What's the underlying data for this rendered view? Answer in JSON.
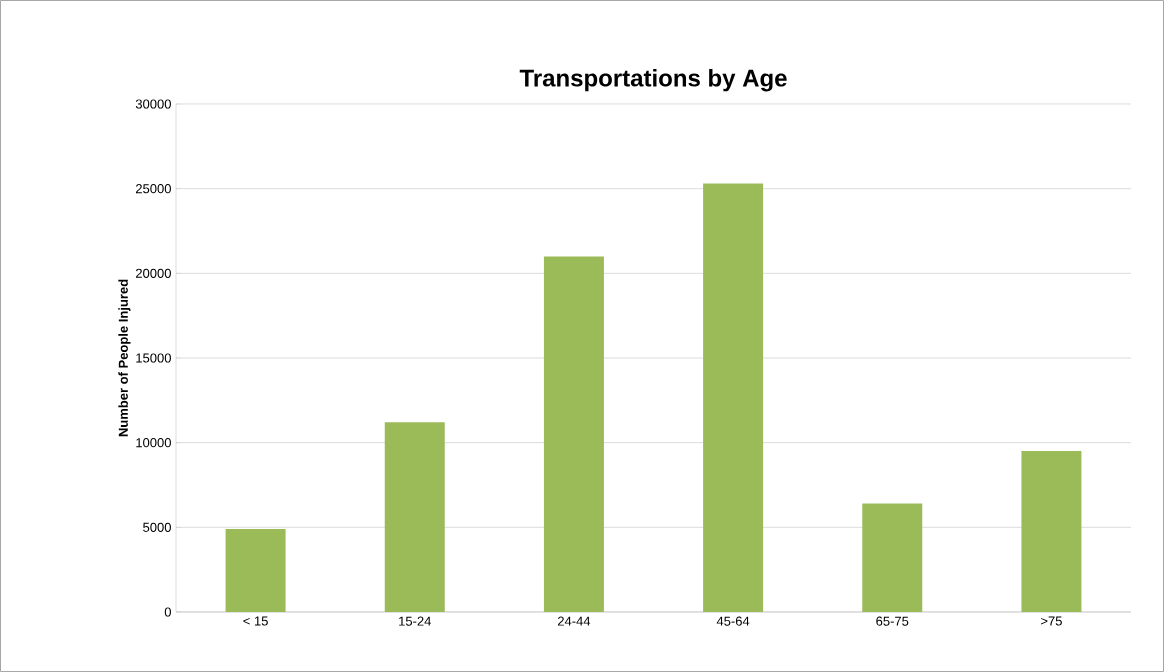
{
  "chart_data": {
    "type": "bar",
    "title": "Transportations by Age",
    "ylabel": "Number of People Injured",
    "categories": [
      "< 15",
      "15-24",
      "24-44",
      "45-64",
      "65-75",
      ">75"
    ],
    "values": [
      4900,
      11200,
      21000,
      25300,
      6400,
      9500
    ],
    "color": "#9bbb59",
    "ylim": [
      0,
      30000
    ],
    "yticks": [
      0,
      5000,
      10000,
      15000,
      20000,
      25000,
      30000
    ],
    "grid": "y"
  }
}
